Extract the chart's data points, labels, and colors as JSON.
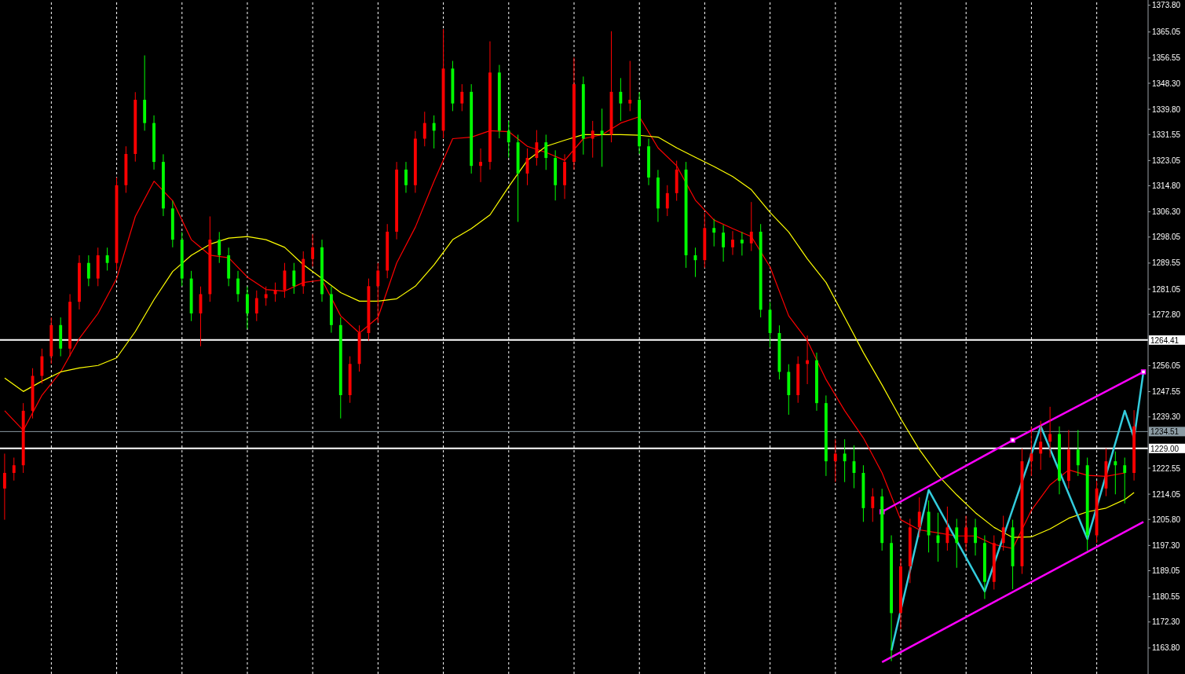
{
  "chart_data": {
    "type": "candlestick",
    "categories": [
      null,
      null,
      null,
      null,
      null,
      null,
      null,
      null,
      null,
      null,
      null,
      null,
      null,
      null,
      null,
      null,
      null,
      null,
      null,
      null,
      null,
      null,
      null,
      null,
      null,
      null,
      null,
      null,
      null,
      null,
      null,
      null,
      null,
      null,
      null,
      null,
      null,
      null,
      null,
      null,
      null,
      null,
      null,
      null,
      null,
      null,
      null,
      null,
      null,
      null,
      null,
      null,
      null,
      null,
      null,
      null,
      null,
      null,
      null,
      null,
      null,
      null,
      null,
      null,
      null,
      null,
      null,
      null,
      null,
      null,
      null,
      null,
      null,
      null,
      null,
      null,
      null,
      null,
      null,
      null,
      null,
      null,
      null,
      null,
      null,
      null,
      null,
      null,
      null,
      null,
      null,
      null,
      null,
      null,
      null,
      null,
      null,
      null,
      null,
      null,
      null,
      null,
      null,
      null,
      null,
      null,
      null,
      null,
      null,
      null,
      null,
      null,
      null,
      null,
      null,
      null,
      null,
      null,
      null,
      null,
      null,
      null,
      null
    ],
    "ohlc": [
      [
        1215.9,
        1227.3,
        1205.7,
        1221.0
      ],
      [
        1221.0,
        1226.0,
        1218.5,
        1223.5
      ],
      [
        1223.5,
        1243.8,
        1221.0,
        1241.3
      ],
      [
        1241.3,
        1255.2,
        1238.8,
        1252.7
      ],
      [
        1252.7,
        1261.6,
        1250.2,
        1259.1
      ],
      [
        1259.1,
        1271.8,
        1256.6,
        1269.3
      ],
      [
        1269.3,
        1271.8,
        1259.1,
        1261.6
      ],
      [
        1261.6,
        1279.4,
        1259.1,
        1276.9
      ],
      [
        1276.9,
        1292.1,
        1274.4,
        1289.6
      ],
      [
        1289.6,
        1292.1,
        1282.0,
        1284.5
      ],
      [
        1284.5,
        1294.6,
        1282.0,
        1292.1
      ],
      [
        1292.1,
        1294.6,
        1287.1,
        1289.6
      ],
      [
        1289.6,
        1317.5,
        1287.1,
        1315.0
      ],
      [
        1315.0,
        1327.7,
        1312.5,
        1325.2
      ],
      [
        1325.2,
        1345.4,
        1322.7,
        1342.9
      ],
      [
        1342.9,
        1357.4,
        1332.8,
        1335.3
      ],
      [
        1335.3,
        1337.8,
        1320.1,
        1322.6
      ],
      [
        1322.6,
        1325.1,
        1304.9,
        1307.4
      ],
      [
        1307.4,
        1309.9,
        1294.7,
        1297.2
      ],
      [
        1297.2,
        1299.7,
        1282.0,
        1284.5
      ],
      [
        1284.5,
        1287.0,
        1270.6,
        1273.1
      ],
      [
        1273.1,
        1281.9,
        1262.4,
        1279.4
      ],
      [
        1279.4,
        1304.8,
        1276.9,
        1297.2
      ],
      [
        1297.2,
        1299.7,
        1289.6,
        1292.1
      ],
      [
        1292.1,
        1294.6,
        1282.0,
        1284.5
      ],
      [
        1284.5,
        1287.0,
        1276.9,
        1279.4
      ],
      [
        1279.4,
        1281.9,
        1268.0,
        1273.1
      ],
      [
        1273.1,
        1280.6,
        1270.6,
        1278.1
      ],
      [
        1278.1,
        1281.9,
        1275.6,
        1279.4
      ],
      [
        1279.4,
        1283.2,
        1276.9,
        1280.7
      ],
      [
        1280.7,
        1289.6,
        1278.2,
        1287.1
      ],
      [
        1287.1,
        1289.6,
        1279.5,
        1282.0
      ],
      [
        1282.0,
        1293.4,
        1279.5,
        1290.9
      ],
      [
        1290.9,
        1299.0,
        1288.4,
        1294.7
      ],
      [
        1294.7,
        1297.2,
        1276.9,
        1279.4
      ],
      [
        1279.4,
        1281.9,
        1266.8,
        1269.3
      ],
      [
        1269.3,
        1271.8,
        1238.8,
        1246.4
      ],
      [
        1246.4,
        1259.1,
        1243.9,
        1256.6
      ],
      [
        1256.6,
        1269.2,
        1254.1,
        1266.7
      ],
      [
        1266.7,
        1284.5,
        1264.2,
        1282.0
      ],
      [
        1282.0,
        1289.6,
        1270.0,
        1287.1
      ],
      [
        1287.1,
        1302.3,
        1284.6,
        1299.8
      ],
      [
        1299.8,
        1322.6,
        1297.3,
        1320.1
      ],
      [
        1320.1,
        1322.6,
        1312.5,
        1315.0
      ],
      [
        1315.0,
        1332.7,
        1312.5,
        1330.2
      ],
      [
        1330.2,
        1339.0,
        1327.7,
        1335.3
      ],
      [
        1335.3,
        1337.8,
        1327.0,
        1332.8
      ],
      [
        1332.8,
        1366.0,
        1330.3,
        1353.1
      ],
      [
        1353.1,
        1355.6,
        1339.2,
        1341.7
      ],
      [
        1341.7,
        1348.0,
        1339.2,
        1345.5
      ],
      [
        1345.5,
        1348.0,
        1318.8,
        1321.3
      ],
      [
        1321.3,
        1327.0,
        1316.0,
        1322.6
      ],
      [
        1322.6,
        1362.0,
        1320.1,
        1351.8
      ],
      [
        1351.8,
        1354.3,
        1330.3,
        1332.8
      ],
      [
        1332.8,
        1336.0,
        1324.0,
        1329.0
      ],
      [
        1329.0,
        1331.5,
        1303.0,
        1318.8
      ],
      [
        1318.8,
        1327.0,
        1315.0,
        1323.9
      ],
      [
        1323.9,
        1333.0,
        1321.4,
        1329.0
      ],
      [
        1329.0,
        1331.5,
        1320.0,
        1323.9
      ],
      [
        1323.9,
        1326.4,
        1310.0,
        1315.0
      ],
      [
        1315.0,
        1325.1,
        1310.5,
        1322.6
      ],
      [
        1322.6,
        1356.7,
        1320.1,
        1348.0
      ],
      [
        1348.0,
        1350.5,
        1325.0,
        1330.2
      ],
      [
        1330.2,
        1336.0,
        1324.0,
        1332.8
      ],
      [
        1332.8,
        1340.0,
        1321.0,
        1331.5
      ],
      [
        1331.5,
        1365.3,
        1329.0,
        1345.5
      ],
      [
        1345.5,
        1350.0,
        1336.0,
        1341.7
      ],
      [
        1341.7,
        1355.6,
        1339.2,
        1342.9
      ],
      [
        1342.9,
        1345.4,
        1325.2,
        1327.7
      ],
      [
        1327.7,
        1330.2,
        1315.0,
        1317.5
      ],
      [
        1317.5,
        1320.0,
        1303.0,
        1307.4
      ],
      [
        1307.4,
        1315.0,
        1304.9,
        1312.4
      ],
      [
        1312.4,
        1323.0,
        1309.9,
        1320.1
      ],
      [
        1320.1,
        1322.6,
        1288.0,
        1292.1
      ],
      [
        1292.1,
        1294.6,
        1285.0,
        1290.5
      ],
      [
        1290.5,
        1306.0,
        1288.0,
        1301.0
      ],
      [
        1301.0,
        1304.0,
        1295.0,
        1299.5
      ],
      [
        1299.5,
        1302.0,
        1290.0,
        1294.7
      ],
      [
        1294.7,
        1300.0,
        1292.2,
        1297.2
      ],
      [
        1297.2,
        1299.7,
        1292.0,
        1296.0
      ],
      [
        1296.0,
        1309.5,
        1293.5,
        1299.8
      ],
      [
        1299.8,
        1302.3,
        1271.8,
        1274.3
      ],
      [
        1274.3,
        1276.8,
        1262.0,
        1266.7
      ],
      [
        1266.7,
        1269.2,
        1251.5,
        1254.0
      ],
      [
        1254.0,
        1256.5,
        1240.0,
        1246.4
      ],
      [
        1246.4,
        1259.1,
        1243.9,
        1256.6
      ],
      [
        1256.6,
        1265.9,
        1250.0,
        1257.8
      ],
      [
        1257.8,
        1260.3,
        1241.3,
        1243.8
      ],
      [
        1243.8,
        1246.3,
        1220.0,
        1224.8
      ],
      [
        1224.8,
        1232.0,
        1218.0,
        1227.3
      ],
      [
        1227.3,
        1232.0,
        1218.0,
        1224.8
      ],
      [
        1224.8,
        1230.0,
        1216.0,
        1221.0
      ],
      [
        1221.0,
        1223.5,
        1205.0,
        1209.5
      ],
      [
        1209.5,
        1216.0,
        1205.0,
        1213.3
      ],
      [
        1213.3,
        1215.8,
        1195.6,
        1198.1
      ],
      [
        1198.1,
        1200.6,
        1159.5,
        1175.2
      ],
      [
        1175.2,
        1193.0,
        1170.0,
        1190.5
      ],
      [
        1190.5,
        1206.0,
        1185.0,
        1203.2
      ],
      [
        1203.2,
        1213.0,
        1200.0,
        1208.3
      ],
      [
        1208.3,
        1212.0,
        1195.0,
        1200.6
      ],
      [
        1200.6,
        1208.0,
        1192.0,
        1198.1
      ],
      [
        1198.1,
        1210.0,
        1195.6,
        1203.2
      ],
      [
        1203.2,
        1206.0,
        1190.0,
        1198.1
      ],
      [
        1198.1,
        1207.0,
        1195.6,
        1203.2
      ],
      [
        1203.2,
        1206.0,
        1194.0,
        1198.1
      ],
      [
        1198.1,
        1200.6,
        1179.8,
        1185.4
      ],
      [
        1185.4,
        1200.6,
        1182.9,
        1198.1
      ],
      [
        1198.1,
        1207.0,
        1195.6,
        1203.2
      ],
      [
        1203.2,
        1205.7,
        1183.0,
        1190.5
      ],
      [
        1190.5,
        1229.0,
        1188.0,
        1224.8
      ],
      [
        1224.8,
        1236.0,
        1220.0,
        1227.3
      ],
      [
        1227.3,
        1238.0,
        1222.0,
        1231.2
      ],
      [
        1231.2,
        1242.6,
        1226.0,
        1233.7
      ],
      [
        1233.7,
        1236.2,
        1214.0,
        1218.4
      ],
      [
        1218.4,
        1235.0,
        1215.9,
        1228.6
      ],
      [
        1228.6,
        1235.0,
        1220.0,
        1223.5
      ],
      [
        1223.5,
        1226.0,
        1195.5,
        1200.6
      ],
      [
        1200.6,
        1218.4,
        1198.1,
        1215.9
      ],
      [
        1215.9,
        1229.0,
        1213.4,
        1224.8
      ],
      [
        1224.8,
        1228.0,
        1214.0,
        1223.5
      ],
      [
        1223.5,
        1226.0,
        1211.0,
        1221.0
      ],
      [
        1221.0,
        1241.5,
        1218.5,
        1236.2
      ],
      null
    ],
    "colors": [
      "#ff0000",
      "#ff0000",
      "#ff0000",
      "#ff0000",
      "#ff0000",
      "#ff0000",
      "#00ff00",
      "#ff0000",
      "#ff0000",
      "#00ff00",
      "#ff0000",
      "#00ff00",
      "#ff0000",
      "#ff0000",
      "#ff0000",
      "#00ff00",
      "#00ff00",
      "#00ff00",
      "#00ff00",
      "#00ff00",
      "#00ff00",
      "#ff0000",
      "#ff0000",
      "#00ff00",
      "#00ff00",
      "#00ff00",
      "#00ff00",
      "#ff0000",
      "#ff0000",
      "#ff0000",
      "#ff0000",
      "#00ff00",
      "#ff0000",
      "#ff0000",
      "#00ff00",
      "#00ff00",
      "#00ff00",
      "#ff0000",
      "#ff0000",
      "#ff0000",
      "#ff0000",
      "#ff0000",
      "#ff0000",
      "#00ff00",
      "#ff0000",
      "#ff0000",
      "#00ff00",
      "#ff0000",
      "#00ff00",
      "#ff0000",
      "#00ff00",
      "#ff0000",
      "#ff0000",
      "#00ff00",
      "#00ff00",
      "#00ff00",
      "#ff0000",
      "#ff0000",
      "#00ff00",
      "#00ff00",
      "#ff0000",
      "#ff0000",
      "#00ff00",
      "#ff0000",
      "#00ff00",
      "#ff0000",
      "#00ff00",
      "#ff0000",
      "#00ff00",
      "#00ff00",
      "#00ff00",
      "#ff0000",
      "#ff0000",
      "#00ff00",
      "#00ff00",
      "#ff0000",
      "#00ff00",
      "#00ff00",
      "#ff0000",
      "#00ff00",
      "#ff0000",
      "#00ff00",
      "#00ff00",
      "#00ff00",
      "#00ff00",
      "#ff0000",
      "#ff0000",
      "#00ff00",
      "#00ff00",
      "#ff0000",
      "#00ff00",
      "#00ff00",
      "#00ff00",
      "#ff0000",
      "#00ff00",
      "#00ff00",
      "#ff0000",
      "#ff0000",
      "#ff0000",
      "#00ff00",
      "#00ff00",
      "#ff0000",
      "#00ff00",
      "#ff0000",
      "#00ff00",
      "#00ff00",
      "#ff0000",
      "#ff0000",
      "#00ff00",
      "#ff0000",
      "#ff0000",
      "#ff0000",
      "#ff0000",
      "#00ff00",
      "#ff0000",
      "#00ff00",
      "#00ff00",
      "#ff0000",
      "#ff0000",
      "#00ff00",
      "#00ff00",
      "#ff0000",
      null
    ],
    "series": [
      {
        "type": "line",
        "color": "#ff0000",
        "values": [
          1241.3,
          null,
          1234.9,
          null,
          1246.4,
          null,
          1254.0,
          null,
          1264.9,
          null,
          1273.1,
          null,
          1284.5,
          null,
          1304.8,
          null,
          1316.3,
          null,
          1309.9,
          null,
          1297.2,
          null,
          1292.1,
          null,
          1291.3,
          null,
          1285.0,
          null,
          1280.9,
          null,
          1280.4,
          null,
          1283.2,
          null,
          1284.0,
          null,
          1272.3,
          null,
          1266.7,
          null,
          1271.8,
          null,
          1289.6,
          null,
          1301.3,
          null,
          1316.3,
          null,
          1330.2,
          null,
          1330.7,
          null,
          1332.8,
          null,
          1332.5,
          null,
          1327.7,
          null,
          1325.7,
          null,
          1323.1,
          null,
          1330.2,
          null,
          1331.5,
          null,
          1335.3,
          null,
          1337.4,
          null,
          1327.2,
          null,
          1321.3,
          null,
          1310.1,
          null,
          1303.6,
          null,
          1300.8,
          null,
          1298.2,
          null,
          1288.3,
          null,
          1272.3,
          null,
          1264.2,
          null,
          1251.5,
          null,
          1241.3,
          null,
          1232.4,
          null,
          1221.0,
          null,
          1205.7,
          null,
          1202.4,
          null,
          1201.4,
          null,
          1200.4,
          null,
          1200.4,
          null,
          1197.6,
          null,
          1196.3,
          null,
          1208.8,
          null,
          1217.1,
          null,
          1222.0,
          null,
          1220.2,
          null,
          1219.9,
          null,
          1221.0,
          null,
          null
        ]
      },
      {
        "type": "line",
        "color": "#ffff00",
        "values": [
          1252.0,
          null,
          1247.6,
          null,
          1251.0,
          null,
          1254.0,
          null,
          1255.3,
          null,
          1256.1,
          null,
          1258.6,
          null,
          1267.2,
          null,
          1277.6,
          null,
          1286.8,
          null,
          1292.1,
          null,
          1295.7,
          null,
          1297.7,
          null,
          1298.2,
          null,
          1297.2,
          null,
          1294.7,
          null,
          1289.0,
          null,
          1284.5,
          null,
          1279.9,
          null,
          1277.1,
          null,
          1277.1,
          null,
          1277.9,
          null,
          1282.0,
          null,
          1289.0,
          null,
          1297.2,
          null,
          1300.8,
          null,
          1305.3,
          null,
          1314.5,
          null,
          1323.1,
          null,
          1327.7,
          null,
          1329.7,
          null,
          1331.5,
          null,
          1331.5,
          null,
          1331.5,
          null,
          1331.3,
          null,
          1330.7,
          null,
          1327.2,
          null,
          1324.1,
          null,
          1321.1,
          null,
          1317.8,
          null,
          1313.5,
          null,
          1306.1,
          null,
          1299.7,
          null,
          1290.9,
          null,
          1283.2,
          null,
          1271.8,
          null,
          1260.3,
          null,
          1249.7,
          null,
          1238.7,
          null,
          1228.6,
          null,
          1220.2,
          null,
          1213.8,
          null,
          1208.0,
          null,
          1203.2,
          null,
          1199.9,
          null,
          1200.1,
          null,
          1202.7,
          null,
          1206.2,
          null,
          1208.3,
          null,
          1209.5,
          null,
          1212.3,
          1214.6,
          null
        ]
      },
      {
        "type": "line",
        "color": "#ff00ff",
        "marker": "square",
        "values": [
          null,
          null,
          null,
          null,
          null,
          null,
          null,
          null,
          null,
          null,
          null,
          null,
          null,
          null,
          null,
          null,
          null,
          null,
          null,
          null,
          null,
          null,
          null,
          null,
          null,
          null,
          null,
          null,
          null,
          null,
          null,
          null,
          null,
          null,
          null,
          null,
          null,
          null,
          null,
          null,
          null,
          null,
          null,
          null,
          null,
          null,
          null,
          null,
          null,
          null,
          null,
          null,
          null,
          null,
          null,
          null,
          null,
          null,
          null,
          null,
          null,
          null,
          null,
          null,
          null,
          null,
          null,
          null,
          null,
          null,
          null,
          null,
          null,
          null,
          null,
          null,
          null,
          null,
          null,
          null,
          null,
          null,
          null,
          null,
          null,
          null,
          null,
          null,
          null,
          null,
          null,
          null,
          null,
          null,
          1208.3,
          null,
          null,
          null,
          null,
          null,
          null,
          null,
          null,
          null,
          null,
          null,
          null,
          null,
          1231.7,
          null,
          null,
          null,
          null,
          null,
          null,
          null,
          null,
          null,
          null,
          null,
          null,
          null,
          1254.0
        ]
      },
      {
        "type": "line",
        "color": "#ff00ff",
        "values": [
          null,
          null,
          null,
          null,
          null,
          null,
          null,
          null,
          null,
          null,
          null,
          null,
          null,
          null,
          null,
          null,
          null,
          null,
          null,
          null,
          null,
          null,
          null,
          null,
          null,
          null,
          null,
          null,
          null,
          null,
          null,
          null,
          null,
          null,
          null,
          null,
          null,
          null,
          null,
          null,
          null,
          null,
          null,
          null,
          null,
          null,
          null,
          null,
          null,
          null,
          null,
          null,
          null,
          null,
          null,
          null,
          null,
          null,
          null,
          null,
          null,
          null,
          null,
          null,
          null,
          null,
          null,
          null,
          null,
          null,
          null,
          null,
          null,
          null,
          null,
          null,
          null,
          null,
          null,
          null,
          null,
          null,
          null,
          null,
          null,
          null,
          null,
          null,
          null,
          null,
          null,
          null,
          null,
          null,
          1159.2,
          null,
          null,
          null,
          null,
          null,
          null,
          null,
          null,
          null,
          null,
          null,
          null,
          null,
          null,
          null,
          null,
          null,
          null,
          null,
          null,
          null,
          null,
          null,
          null,
          null,
          null,
          null,
          1205.0
        ]
      },
      {
        "type": "line",
        "color": "#33ccdd",
        "values": [
          null,
          null,
          null,
          null,
          null,
          null,
          null,
          null,
          null,
          null,
          null,
          null,
          null,
          null,
          null,
          null,
          null,
          null,
          null,
          null,
          null,
          null,
          null,
          null,
          null,
          null,
          null,
          null,
          null,
          null,
          null,
          null,
          null,
          null,
          null,
          null,
          null,
          null,
          null,
          null,
          null,
          null,
          null,
          null,
          null,
          null,
          null,
          null,
          null,
          null,
          null,
          null,
          null,
          null,
          null,
          null,
          null,
          null,
          null,
          null,
          null,
          null,
          null,
          null,
          null,
          null,
          null,
          null,
          null,
          null,
          null,
          null,
          null,
          null,
          null,
          null,
          null,
          null,
          null,
          null,
          null,
          null,
          null,
          null,
          null,
          null,
          null,
          null,
          null,
          null,
          null,
          null,
          null,
          null,
          null,
          1163.0,
          null,
          null,
          null,
          1215.4,
          null,
          null,
          null,
          null,
          null,
          1182.3,
          null,
          null,
          null,
          null,
          null,
          1236.2,
          null,
          null,
          null,
          null,
          1199.4,
          null,
          null,
          null,
          1241.3,
          1232.4,
          1254.0
        ]
      }
    ],
    "ylim": [
      1155.3,
      1375.5
    ],
    "yticks": [
      {
        "value": 1373.8,
        "label": "1373.80"
      },
      {
        "value": 1365.05,
        "label": "1365.05"
      },
      {
        "value": 1356.55,
        "label": "1356.55"
      },
      {
        "value": 1348.3,
        "label": "1348.30"
      },
      {
        "value": 1339.8,
        "label": "1339.80"
      },
      {
        "value": 1331.55,
        "label": "1331.55"
      },
      {
        "value": 1323.05,
        "label": "1323.05"
      },
      {
        "value": 1314.8,
        "label": "1314.80"
      },
      {
        "value": 1306.3,
        "label": "1306.30"
      },
      {
        "value": 1298.05,
        "label": "1298.05"
      },
      {
        "value": 1289.55,
        "label": "1289.55"
      },
      {
        "value": 1281.05,
        "label": "1281.05"
      },
      {
        "value": 1272.8,
        "label": "1272.80"
      },
      {
        "value": 1256.05,
        "label": "1256.05"
      },
      {
        "value": 1247.55,
        "label": "1247.55"
      },
      {
        "value": 1239.3,
        "label": "1239.30"
      },
      {
        "value": 1222.55,
        "label": "1222.55"
      },
      {
        "value": 1214.05,
        "label": "1214.05"
      },
      {
        "value": 1205.8,
        "label": "1205.80"
      },
      {
        "value": 1197.3,
        "label": "1197.30"
      },
      {
        "value": 1189.05,
        "label": "1189.05"
      },
      {
        "value": 1180.55,
        "label": "1180.55"
      },
      {
        "value": 1172.3,
        "label": "1172.30"
      },
      {
        "value": 1163.8,
        "label": "1163.80"
      }
    ],
    "ref_lines": [
      {
        "axis": "y",
        "value": 1264.41,
        "label": "1264.41",
        "color": "#ffffff"
      },
      {
        "axis": "y",
        "value": 1234.51,
        "label": "1234.51",
        "color": "#8c9ca4"
      },
      {
        "axis": "y",
        "value": 1229.0,
        "label": "1229.00",
        "color": "#ffffff"
      }
    ],
    "tick_labels": "y",
    "grid": "x"
  }
}
